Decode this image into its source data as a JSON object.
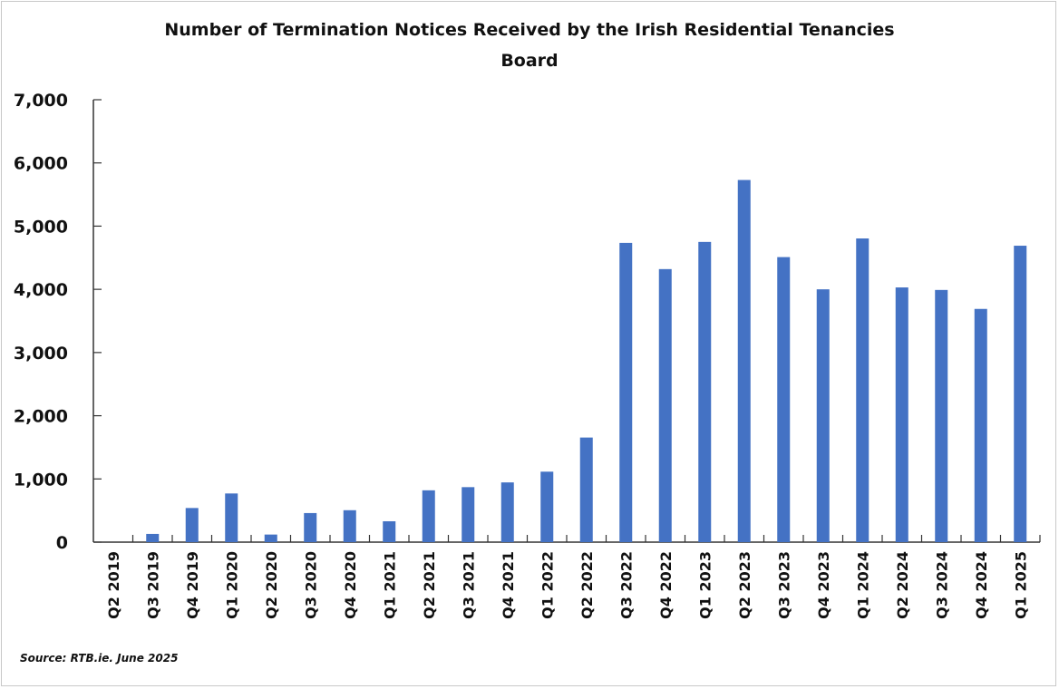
{
  "chart_data": {
    "type": "bar",
    "title": "Number of Termination Notices Received by the Irish Residential Tenancies Board",
    "title_lines": [
      "Number of Termination Notices Received by the Irish Residential Tenancies",
      "Board"
    ],
    "xlabel": "",
    "ylabel": "",
    "ylim": [
      0,
      7000
    ],
    "yticks": [
      "0",
      "1,000",
      "2,000",
      "3,000",
      "4,000",
      "5,000",
      "6,000",
      "7,000"
    ],
    "grid": false,
    "legend": "none",
    "bar_color": "#4472C4",
    "categories": [
      "Q2 2019",
      "Q3 2019",
      "Q4 2019",
      "Q1 2020",
      "Q2 2020",
      "Q3 2020",
      "Q4 2020",
      "Q1 2021",
      "Q2 2021",
      "Q3 2021",
      "Q4 2021",
      "Q1 2022",
      "Q2 2022",
      "Q3 2022",
      "Q4 2022",
      "Q1 2023",
      "Q2 2023",
      "Q3 2023",
      "Q4 2023",
      "Q1 2024",
      "Q2 2024",
      "Q3 2024",
      "Q4 2024",
      "Q1 2025"
    ],
    "values": [
      0,
      130,
      540,
      770,
      120,
      460,
      505,
      330,
      820,
      870,
      945,
      1115,
      1655,
      4735,
      4320,
      4750,
      5730,
      4510,
      4000,
      4805,
      4030,
      3990,
      3690,
      4690
    ],
    "source": "Source: RTB.ie. June 2025"
  }
}
